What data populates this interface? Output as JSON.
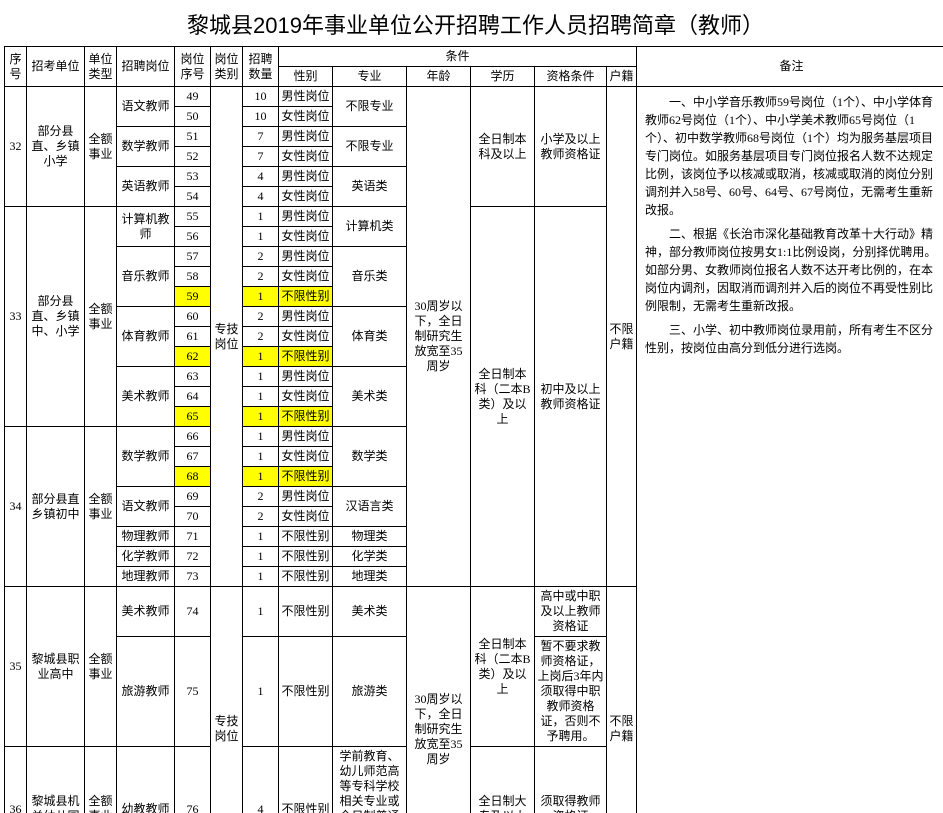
{
  "title": "黎城县2019年事业单位公开招聘工作人员招聘简章（教师）",
  "headers": {
    "seq": "序号",
    "unit": "招考单位",
    "utype": "单位类型",
    "pos": "招聘岗位",
    "pno": "岗位序号",
    "ptype": "岗位类别",
    "cnt": "招聘数量",
    "cond": "条件",
    "gender": "性别",
    "major": "专业",
    "age": "年龄",
    "edu": "学历",
    "qual": "资格条件",
    "huji": "户籍",
    "note": "备注"
  },
  "groups": [
    {
      "seq": "32",
      "unit": "部分县直、乡镇小学",
      "utype": "全额事业",
      "subs": [
        {
          "pos": "语文教师",
          "rows": [
            {
              "no": "49",
              "cnt": "10",
              "g": "男性岗位"
            },
            {
              "no": "50",
              "cnt": "10",
              "g": "女性岗位"
            }
          ],
          "major": "不限专业"
        },
        {
          "pos": "数学教师",
          "rows": [
            {
              "no": "51",
              "cnt": "7",
              "g": "男性岗位"
            },
            {
              "no": "52",
              "cnt": "7",
              "g": "女性岗位"
            }
          ],
          "major": "不限专业"
        },
        {
          "pos": "英语教师",
          "rows": [
            {
              "no": "53",
              "cnt": "4",
              "g": "男性岗位"
            },
            {
              "no": "54",
              "cnt": "4",
              "g": "女性岗位"
            }
          ],
          "major": "英语类"
        }
      ],
      "edu": "全日制本科及以上",
      "qual": "小学及以上教师资格证"
    },
    {
      "seq": "33",
      "unit": "部分县直、乡镇中、小学",
      "utype": "全额事业",
      "subs": [
        {
          "pos": "计算机教师",
          "rows": [
            {
              "no": "55",
              "cnt": "1",
              "g": "男性岗位"
            },
            {
              "no": "56",
              "cnt": "1",
              "g": "女性岗位"
            }
          ],
          "major": "计算机类"
        },
        {
          "pos": "音乐教师",
          "rows": [
            {
              "no": "57",
              "cnt": "2",
              "g": "男性岗位"
            },
            {
              "no": "58",
              "cnt": "2",
              "g": "女性岗位"
            },
            {
              "no": "59",
              "cnt": "1",
              "g": "不限性别",
              "hl": true
            }
          ],
          "major": "音乐类"
        },
        {
          "pos": "体育教师",
          "rows": [
            {
              "no": "60",
              "cnt": "2",
              "g": "男性岗位"
            },
            {
              "no": "61",
              "cnt": "2",
              "g": "女性岗位"
            },
            {
              "no": "62",
              "cnt": "1",
              "g": "不限性别",
              "hl": true
            }
          ],
          "major": "体育类"
        },
        {
          "pos": "美术教师",
          "rows": [
            {
              "no": "63",
              "cnt": "1",
              "g": "男性岗位"
            },
            {
              "no": "64",
              "cnt": "1",
              "g": "女性岗位"
            },
            {
              "no": "65",
              "cnt": "1",
              "g": "不限性别",
              "hl": true
            }
          ],
          "major": "美术类"
        }
      ],
      "edu": "全日制本科（二本B类）及以上",
      "qual": "初中及以上教师资格证"
    },
    {
      "seq": "34",
      "unit": "部分县直乡镇初中",
      "utype": "全额事业",
      "subs": [
        {
          "pos": "数学教师",
          "rows": [
            {
              "no": "66",
              "cnt": "1",
              "g": "男性岗位"
            },
            {
              "no": "67",
              "cnt": "1",
              "g": "女性岗位"
            },
            {
              "no": "68",
              "cnt": "1",
              "g": "不限性别",
              "hl": true
            }
          ],
          "major": "数学类"
        },
        {
          "pos": "语文教师",
          "rows": [
            {
              "no": "69",
              "cnt": "2",
              "g": "男性岗位"
            },
            {
              "no": "70",
              "cnt": "2",
              "g": "女性岗位"
            }
          ],
          "major": "汉语言类"
        },
        {
          "pos": "物理教师",
          "rows": [
            {
              "no": "71",
              "cnt": "1",
              "g": "不限性别"
            }
          ],
          "major": "物理类"
        },
        {
          "pos": "化学教师",
          "rows": [
            {
              "no": "72",
              "cnt": "1",
              "g": "不限性别"
            }
          ],
          "major": "化学类"
        },
        {
          "pos": "地理教师",
          "rows": [
            {
              "no": "73",
              "cnt": "1",
              "g": "不限性别"
            }
          ],
          "major": "地理类"
        }
      ]
    },
    {
      "seq": "35",
      "unit": "黎城县职业高中",
      "utype": "全额事业",
      "subs": [
        {
          "pos": "美术教师",
          "rows": [
            {
              "no": "74",
              "cnt": "1",
              "g": "不限性别"
            }
          ],
          "major": "美术类",
          "qual": "高中或中职及以上教师资格证"
        },
        {
          "pos": "旅游教师",
          "rows": [
            {
              "no": "75",
              "cnt": "1",
              "g": "不限性别"
            }
          ],
          "major": "旅游类",
          "qual": "暂不要求教师资格证，上岗后3年内须取得中职教师资格证，否则不予聘用。"
        }
      ],
      "edu": "全日制本科（二本B类）及以上"
    },
    {
      "seq": "36",
      "unit": "黎城县机关幼儿园",
      "utype": "全额事业",
      "subs": [
        {
          "pos": "幼教教师",
          "rows": [
            {
              "no": "76",
              "cnt": "4",
              "g": "不限性别"
            }
          ],
          "major": "学前教育、幼儿师范高等专科学校相关专业或全日制普通本科音乐、美术、舞蹈专业",
          "edu": "全日制大专及以上",
          "qual": "须取得教师资格证"
        }
      ]
    }
  ],
  "ptype1": "专技岗位",
  "ptype2": "专技岗位",
  "age1": "30周岁以下，全日制研究生放宽至35周岁",
  "age2": "30周岁以下，全日制研究生放宽至35周岁",
  "huji1": "不限户籍",
  "huji2": "不限户籍",
  "remarks": [
    "一、中小学音乐教师59号岗位（1个）、中小学体育教师62号岗位（1个）、中小学美术教师65号岗位（1个）、初中数学教师68号岗位（1个）均为服务基层项目专门岗位。如服务基层项目专门岗位报名人数不达规定比例，该岗位予以核减或取消，核减或取消的岗位分别调剂并入58号、60号、64号、67号岗位，无需考生重新改报。",
    "二、根据《长治市深化基础教育改革十大行动》精神，部分教师岗位按男女1:1比例设岗，分别择优聘用。如部分男、女教师岗位报名人数不达开考比例的，在本岗位内调剂，因取消而调剂并入后的岗位不再受性别比例限制，无需考生重新改报。",
    "三、小学、初中教师岗位录用前，所有考生不区分性别，按岗位由高分到低分进行选岗。"
  ]
}
